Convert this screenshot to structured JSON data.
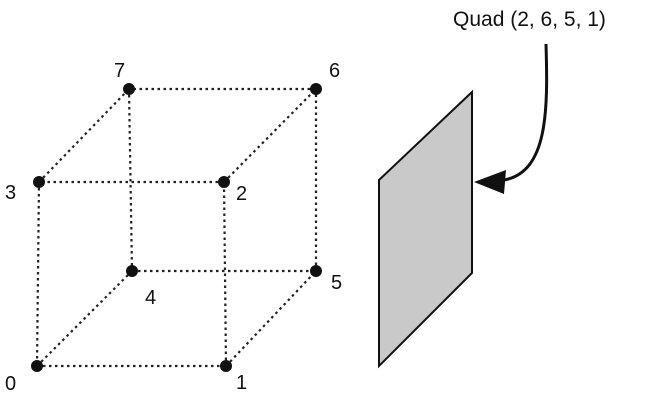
{
  "vertices": [
    {
      "id": 0,
      "label": "0"
    },
    {
      "id": 1,
      "label": "1"
    },
    {
      "id": 2,
      "label": "2"
    },
    {
      "id": 3,
      "label": "3"
    },
    {
      "id": 4,
      "label": "4"
    },
    {
      "id": 5,
      "label": "5"
    },
    {
      "id": 6,
      "label": "6"
    },
    {
      "id": 7,
      "label": "7"
    }
  ],
  "edges": [
    [
      0,
      1
    ],
    [
      1,
      2
    ],
    [
      2,
      3
    ],
    [
      3,
      0
    ],
    [
      4,
      5
    ],
    [
      5,
      6
    ],
    [
      6,
      7
    ],
    [
      7,
      4
    ],
    [
      0,
      4
    ],
    [
      1,
      5
    ],
    [
      2,
      6
    ],
    [
      3,
      7
    ]
  ],
  "callout": {
    "text": "Quad (2, 6, 5, 1)"
  },
  "colors": {
    "quad_fill": "#c9c9c9",
    "ink": "#111111"
  }
}
